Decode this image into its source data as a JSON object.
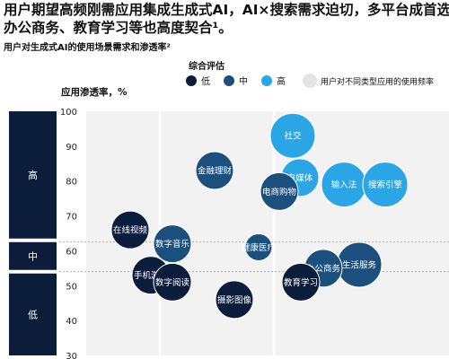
{
  "headline": {
    "line1": "用户期望高频刚需应用集成生成式AI，AI×搜索需求迫切，多平台成首选，",
    "line2": "办公商务、教育学习等也高度契合¹。"
  },
  "chart_data": {
    "type": "bubble",
    "title": "用户对生成式AI的使用场景需求和渗透率²",
    "ylabel": "应用渗透率，%",
    "ylim": [
      30,
      100
    ],
    "yticks": [
      30,
      40,
      50,
      60,
      70,
      80,
      90,
      100
    ],
    "row_labels": [
      {
        "label": "高",
        "range": [
          63,
          100
        ]
      },
      {
        "label": "中",
        "range": [
          54,
          63
        ]
      },
      {
        "label": "低",
        "range": [
          30,
          54
        ]
      }
    ],
    "threshold_lines": [
      62.5,
      54
    ],
    "legend": {
      "title": "综合评估",
      "items": [
        {
          "label": "低",
          "color": "#0b1d3a"
        },
        {
          "label": "中",
          "color": "#1b4f7d"
        },
        {
          "label": "高",
          "color": "#2aa6e6"
        }
      ],
      "size_note": "用户对不同类型应用的使用频率"
    },
    "points": [
      {
        "label": "社交",
        "y": 93,
        "level": "高",
        "size": "large"
      },
      {
        "label": "金融理财",
        "y": 83,
        "level": "中",
        "size": "medium"
      },
      {
        "label": "自媒体",
        "y": 81,
        "level": "高",
        "size": "medium"
      },
      {
        "label": "输入法",
        "y": 79,
        "level": "高",
        "size": "large"
      },
      {
        "label": "搜索引擎",
        "y": 79,
        "level": "高",
        "size": "large"
      },
      {
        "label": "电商购物",
        "y": 77,
        "level": "中",
        "size": "medium"
      },
      {
        "label": "在线视频",
        "y": 66,
        "level": "低",
        "size": "medium"
      },
      {
        "label": "数字音乐",
        "y": 62,
        "level": "中",
        "size": "medium"
      },
      {
        "label": "健康医疗",
        "y": 61,
        "level": "中",
        "size": "small"
      },
      {
        "label": "生活服务",
        "y": 56,
        "level": "中",
        "size": "large"
      },
      {
        "label": "办公商务",
        "y": 55,
        "level": "中",
        "size": "medium"
      },
      {
        "label": "手机游戏",
        "y": 53,
        "level": "低",
        "size": "medium"
      },
      {
        "label": "教育学习",
        "y": 51,
        "level": "低",
        "size": "medium"
      },
      {
        "label": "数字阅读",
        "y": 51,
        "level": "低",
        "size": "medium"
      },
      {
        "label": "摄影图像",
        "y": 46,
        "level": "低",
        "size": "medium"
      }
    ]
  }
}
